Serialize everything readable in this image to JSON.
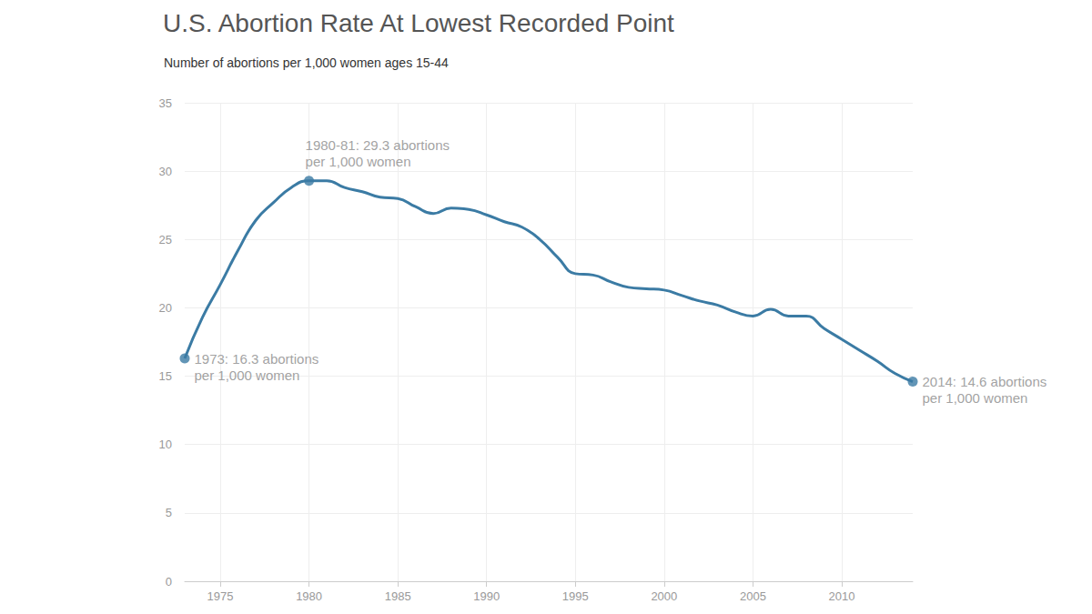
{
  "chart_data": {
    "type": "line",
    "title": "U.S. Abortion Rate At Lowest Recorded Point",
    "subtitle": "Number of abortions per 1,000 women ages 15-44",
    "x": [
      1973,
      1974,
      1975,
      1976,
      1977,
      1978,
      1979,
      1980,
      1981,
      1982,
      1983,
      1984,
      1985,
      1986,
      1987,
      1988,
      1989,
      1990,
      1991,
      1992,
      1993,
      1994,
      1995,
      1996,
      1997,
      1998,
      1999,
      2000,
      2001,
      2002,
      2003,
      2004,
      2005,
      2006,
      2007,
      2008,
      2009,
      2010,
      2011,
      2012,
      2013,
      2014
    ],
    "values": [
      16.3,
      19.3,
      21.7,
      24.2,
      26.4,
      27.7,
      28.8,
      29.3,
      29.3,
      28.8,
      28.5,
      28.1,
      28.0,
      27.4,
      26.9,
      27.3,
      27.2,
      26.8,
      26.3,
      25.9,
      25.0,
      23.7,
      22.5,
      22.4,
      21.9,
      21.5,
      21.4,
      21.3,
      20.9,
      20.5,
      20.2,
      19.7,
      19.4,
      19.9,
      19.4,
      19.4,
      18.5,
      17.7,
      16.9,
      16.1,
      15.2,
      14.6
    ],
    "color": "#3b7ba4",
    "xlim": [
      1973,
      2014
    ],
    "xticks": [
      1975,
      1980,
      1985,
      1990,
      1995,
      2000,
      2005,
      2010
    ],
    "ylim": [
      0,
      35
    ],
    "yticks": [
      0,
      5,
      10,
      15,
      20,
      25,
      30,
      35
    ],
    "grid": true,
    "annotations": [
      {
        "x": 1973,
        "y": 16.3,
        "lines": [
          "1973: 16.3 abortions",
          "per 1,000 women"
        ]
      },
      {
        "x": 1980,
        "y": 29.3,
        "lines": [
          "1980-81: 29.3 abortions",
          "per 1,000 women"
        ]
      },
      {
        "x": 2014,
        "y": 14.6,
        "lines": [
          "2014: 14.6 abortions",
          "per 1,000 women"
        ]
      }
    ]
  }
}
